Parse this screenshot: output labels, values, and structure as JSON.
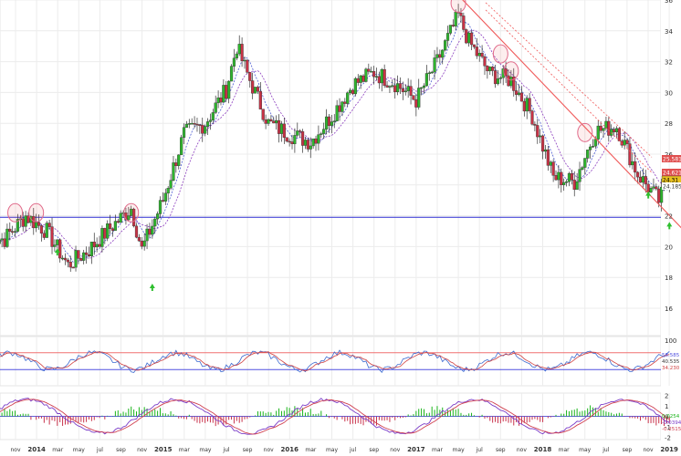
{
  "chart_data": {
    "type": "candlestick",
    "main": {
      "ylim": [
        16,
        36
      ],
      "y_ticks": [
        "16",
        "18",
        "20",
        "22",
        "24",
        "26",
        "28",
        "30",
        "32",
        "34",
        "36"
      ],
      "horizontal_line": 21.9,
      "trendline": {
        "from": [
          "2017-05",
          36.3
        ],
        "to": [
          "2019-03",
          20.6
        ]
      },
      "price_labels": [
        "25.581",
        "24.621",
        "24.31",
        "24.185"
      ],
      "candles_approx": [
        {
          "date": "2013-10",
          "c": 20.5
        },
        {
          "date": "2013-12",
          "c": 22.0
        },
        {
          "date": "2014-02",
          "c": 21.0
        },
        {
          "date": "2014-04",
          "c": 18.8
        },
        {
          "date": "2014-06",
          "c": 19.8
        },
        {
          "date": "2014-08",
          "c": 21.2
        },
        {
          "date": "2014-10",
          "c": 22.5
        },
        {
          "date": "2014-11",
          "c": 19.8
        },
        {
          "date": "2015-01",
          "c": 23.0
        },
        {
          "date": "2015-03",
          "c": 27.3
        },
        {
          "date": "2015-05",
          "c": 28.0
        },
        {
          "date": "2015-07",
          "c": 30.2
        },
        {
          "date": "2015-08",
          "c": 33.0
        },
        {
          "date": "2015-09",
          "c": 31.2
        },
        {
          "date": "2015-11",
          "c": 28.0
        },
        {
          "date": "2016-01",
          "c": 27.3
        },
        {
          "date": "2016-03",
          "c": 26.8
        },
        {
          "date": "2016-05",
          "c": 28.5
        },
        {
          "date": "2016-07",
          "c": 30.5
        },
        {
          "date": "2016-09",
          "c": 31.3
        },
        {
          "date": "2016-11",
          "c": 30.6
        },
        {
          "date": "2017-01",
          "c": 29.5
        },
        {
          "date": "2017-03",
          "c": 32.0
        },
        {
          "date": "2017-05",
          "c": 35.0
        },
        {
          "date": "2017-06",
          "c": 33.3
        },
        {
          "date": "2017-08",
          "c": 31.2
        },
        {
          "date": "2017-10",
          "c": 30.8
        },
        {
          "date": "2017-12",
          "c": 28.5
        },
        {
          "date": "2018-02",
          "c": 24.5
        },
        {
          "date": "2018-04",
          "c": 24.2
        },
        {
          "date": "2018-06",
          "c": 27.5
        },
        {
          "date": "2018-08",
          "c": 27.8
        },
        {
          "date": "2018-10",
          "c": 24.7
        },
        {
          "date": "2018-12",
          "c": 23.0
        },
        {
          "date": "2019-01",
          "c": 24.3
        }
      ]
    },
    "indicator1": {
      "y_ticks": [
        "100"
      ],
      "value_labels": [
        "58.585",
        "40.535",
        "34.230"
      ]
    },
    "indicator2": {
      "y_ticks": [
        "2",
        "1",
        "0",
        "-1",
        "-2"
      ],
      "value_labels": [
        "0.0254",
        "-0.0394",
        "-0.2515"
      ]
    },
    "x_labels": [
      "nov",
      "2014",
      "mar",
      "may",
      "jul",
      "sep",
      "nov",
      "2015",
      "mar",
      "may",
      "jul",
      "sep",
      "nov",
      "2016",
      "mar",
      "may",
      "jul",
      "sep",
      "nov",
      "2017",
      "mar",
      "may",
      "jul",
      "sep",
      "nov",
      "2018",
      "mar",
      "may",
      "jul",
      "sep",
      "nov",
      "2019",
      "mar"
    ],
    "colors": {
      "up": "#2db52d",
      "down": "#c83246",
      "support": "#2d2dd2",
      "trend": "#f05a5a",
      "ma": "#4b5ad2",
      "bull": "#19b419",
      "bear": "#c8324b"
    },
    "grid": true
  }
}
